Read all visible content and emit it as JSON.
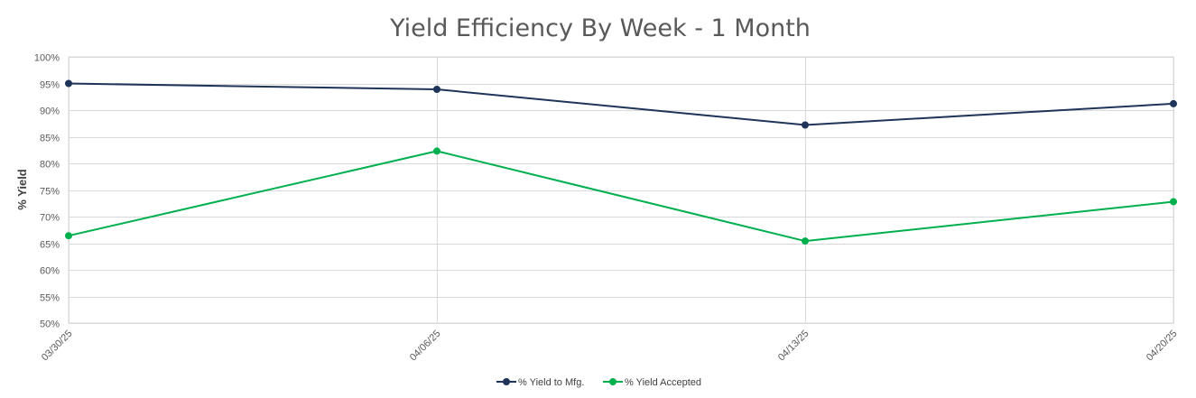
{
  "chart_data": {
    "type": "line",
    "title": "Yield Efficiency By Week - 1 Month",
    "xlabel": "",
    "ylabel": "% Yield",
    "categories": [
      "03/30/25",
      "04/06/25",
      "04/13/25",
      "04/20/25"
    ],
    "yticks": [
      "50%",
      "55%",
      "60%",
      "65%",
      "70%",
      "75%",
      "80%",
      "85%",
      "90%",
      "95%",
      "100%"
    ],
    "ylim": [
      50,
      100
    ],
    "grid": true,
    "legend": "bottom-center",
    "series": [
      {
        "name": "% Yield to Mfg.",
        "color": "#1f3459",
        "values": [
          95.0,
          93.9,
          87.2,
          91.2
        ]
      },
      {
        "name": "% Yield Accepted",
        "color": "#00b04f",
        "values": [
          66.4,
          82.3,
          65.4,
          72.8
        ]
      }
    ]
  }
}
